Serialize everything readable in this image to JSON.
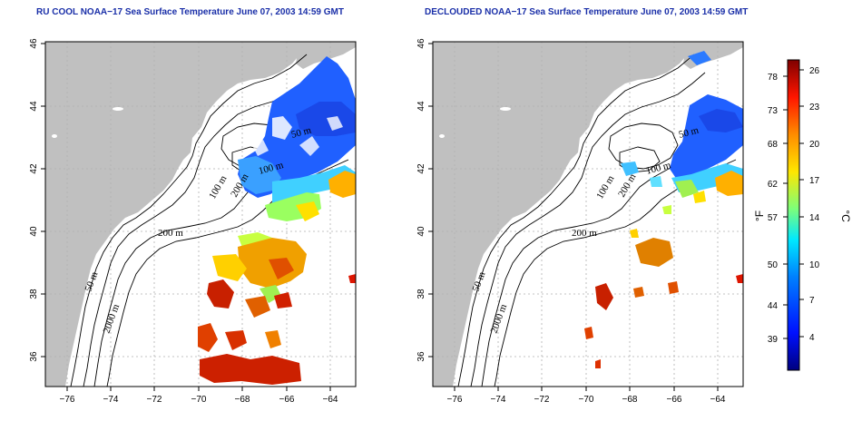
{
  "panels": [
    {
      "id": "left",
      "title": "RU COOL NOAA−17 Sea Surface Temperature June 07, 2003 14:59 GMT"
    },
    {
      "id": "right",
      "title": "DECLOUDED NOAA−17 Sea Surface Temperature June 07, 2003 14:59 GMT"
    }
  ],
  "map_axes": {
    "x_ticks": [
      "−76",
      "−74",
      "−72",
      "−70",
      "−68",
      "−66",
      "−64"
    ],
    "y_ticks": [
      "36",
      "38",
      "40",
      "42",
      "44",
      "46"
    ]
  },
  "contour_labels": {
    "left": [
      "50 m",
      "100 m",
      "200 m",
      "200 m",
      "50 m",
      "2000 m",
      "100 m"
    ],
    "right": [
      "50 m",
      "100 m",
      "200 m",
      "200 m",
      "50 m",
      "2000 m",
      "100 m"
    ]
  },
  "colorbar": {
    "fahrenheit_ticks": [
      "78",
      "73",
      "68",
      "62",
      "57",
      "50",
      "44",
      "39"
    ],
    "celsius_ticks": [
      "26",
      "23",
      "20",
      "17",
      "14",
      "10",
      "7",
      "4"
    ],
    "fahrenheit_label": "°F",
    "celsius_label": "°C",
    "colors": [
      "#00007f",
      "#0010ff",
      "#0080ff",
      "#00e8ff",
      "#7dff7a",
      "#ffe600",
      "#ff8c00",
      "#ff1500",
      "#7f0000"
    ]
  },
  "colors": {
    "land": "#c0c0c0",
    "title": "#1a2fa8",
    "grid": "#b0b0b0"
  }
}
